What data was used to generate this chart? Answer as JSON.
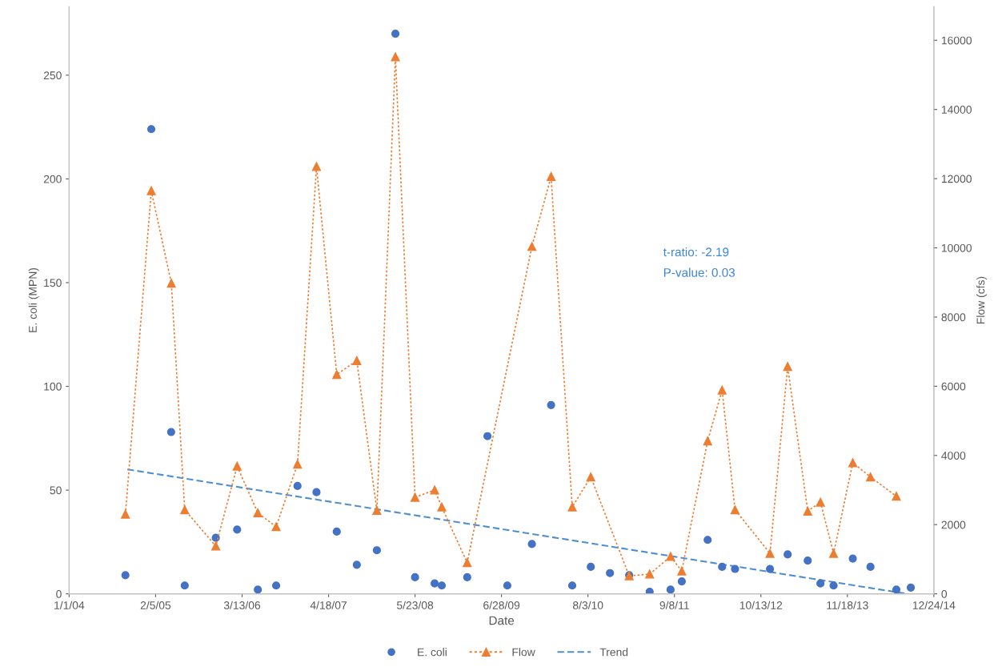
{
  "chart_data": {
    "type": "scatter",
    "xlabel": "Date",
    "ylabel": "E. coli (MPN)",
    "y2label": "Flow (cfs)",
    "xlim": [
      "2004-01-01",
      "2014-12-24"
    ],
    "xticks": [
      {
        "value": "2004-01-01",
        "label": "1/1/04"
      },
      {
        "value": "2005-02-05",
        "label": "2/5/05"
      },
      {
        "value": "2006-03-13",
        "label": "3/13/06"
      },
      {
        "value": "2007-04-18",
        "label": "4/18/07"
      },
      {
        "value": "2008-05-23",
        "label": "5/23/08"
      },
      {
        "value": "2009-06-28",
        "label": "6/28/09"
      },
      {
        "value": "2010-08-03",
        "label": "8/3/10"
      },
      {
        "value": "2011-09-08",
        "label": "9/8/11"
      },
      {
        "value": "2012-10-13",
        "label": "10/13/12"
      },
      {
        "value": "2013-11-18",
        "label": "11/18/13"
      },
      {
        "value": "2014-12-24",
        "label": "12/24/14"
      }
    ],
    "ylim": [
      0,
      283
    ],
    "yticks": [
      0,
      50,
      100,
      150,
      200,
      250
    ],
    "y2lim": [
      0,
      16970
    ],
    "y2ticks": [
      0,
      2000,
      4000,
      6000,
      8000,
      10000,
      12000,
      14000,
      16000
    ],
    "grid": false,
    "legend": "bottom",
    "annotations": [
      "t-ratio: -2.19",
      "P-value: 0.03"
    ],
    "series": [
      {
        "name": "E. coli",
        "color": "#4472c4",
        "marker": "circle",
        "line_style": "none",
        "x": [
          "2004-09-18",
          "2005-01-16",
          "2005-04-18",
          "2005-06-20",
          "2005-11-11",
          "2006-02-18",
          "2006-05-25",
          "2006-08-18",
          "2006-11-25",
          "2007-02-21",
          "2007-05-26",
          "2007-08-27",
          "2007-11-28",
          "2008-02-22",
          "2008-05-23",
          "2008-08-22",
          "2008-09-24",
          "2009-01-20",
          "2009-04-24",
          "2009-07-25",
          "2009-11-16",
          "2010-02-13",
          "2010-05-22",
          "2010-08-16",
          "2010-11-13",
          "2011-02-10",
          "2011-05-16",
          "2011-08-21",
          "2011-10-12",
          "2012-02-09",
          "2012-04-16",
          "2012-06-15",
          "2012-11-24",
          "2013-02-14",
          "2013-05-18",
          "2013-07-16",
          "2013-09-15",
          "2013-12-13",
          "2014-03-05",
          "2014-07-03",
          "2014-09-08"
        ],
        "values": [
          9,
          224,
          78,
          4,
          27,
          31,
          2,
          4,
          52,
          49,
          30,
          14,
          21,
          270,
          8,
          5,
          4,
          8,
          76,
          4,
          24,
          91,
          4,
          13,
          10,
          9,
          1,
          2,
          6,
          26,
          13,
          12,
          12,
          19,
          16,
          5,
          4,
          17,
          13,
          2,
          3
        ]
      },
      {
        "name": "Flow",
        "type": "line",
        "axis": "y2",
        "color": "#ed7d31",
        "marker": "triangle",
        "line_style": "dotted",
        "x": [
          "2004-09-18",
          "2005-01-16",
          "2005-04-19",
          "2005-06-20",
          "2005-11-11",
          "2006-02-18",
          "2006-05-25",
          "2006-08-18",
          "2006-11-25",
          "2007-02-21",
          "2007-05-26",
          "2007-08-27",
          "2007-11-28",
          "2008-02-22",
          "2008-05-23",
          "2008-08-22",
          "2008-09-24",
          "2009-01-20",
          "2009-11-16",
          "2010-02-13",
          "2010-05-22",
          "2010-08-16",
          "2011-02-10",
          "2011-05-16",
          "2011-08-21",
          "2011-10-12",
          "2012-02-09",
          "2012-04-16",
          "2012-06-15",
          "2012-11-24",
          "2013-02-14",
          "2013-05-18",
          "2013-07-16",
          "2013-09-15",
          "2013-12-13",
          "2014-03-05",
          "2014-07-03"
        ],
        "values": [
          2300,
          11650,
          8980,
          2430,
          1380,
          3690,
          2340,
          1940,
          3750,
          12350,
          6340,
          6740,
          2410,
          15520,
          2790,
          3000,
          2510,
          900,
          10040,
          12060,
          2510,
          3380,
          520,
          570,
          1080,
          660,
          4420,
          5890,
          2430,
          1170,
          6570,
          2390,
          2650,
          1170,
          3790,
          3380,
          2820
        ]
      },
      {
        "name": "Trend",
        "type": "line",
        "color": "#4f8fd0",
        "marker": "none",
        "line_style": "dashed",
        "x": [
          "2004-09-27",
          "2014-08-22"
        ],
        "values": [
          60,
          0
        ]
      }
    ]
  }
}
